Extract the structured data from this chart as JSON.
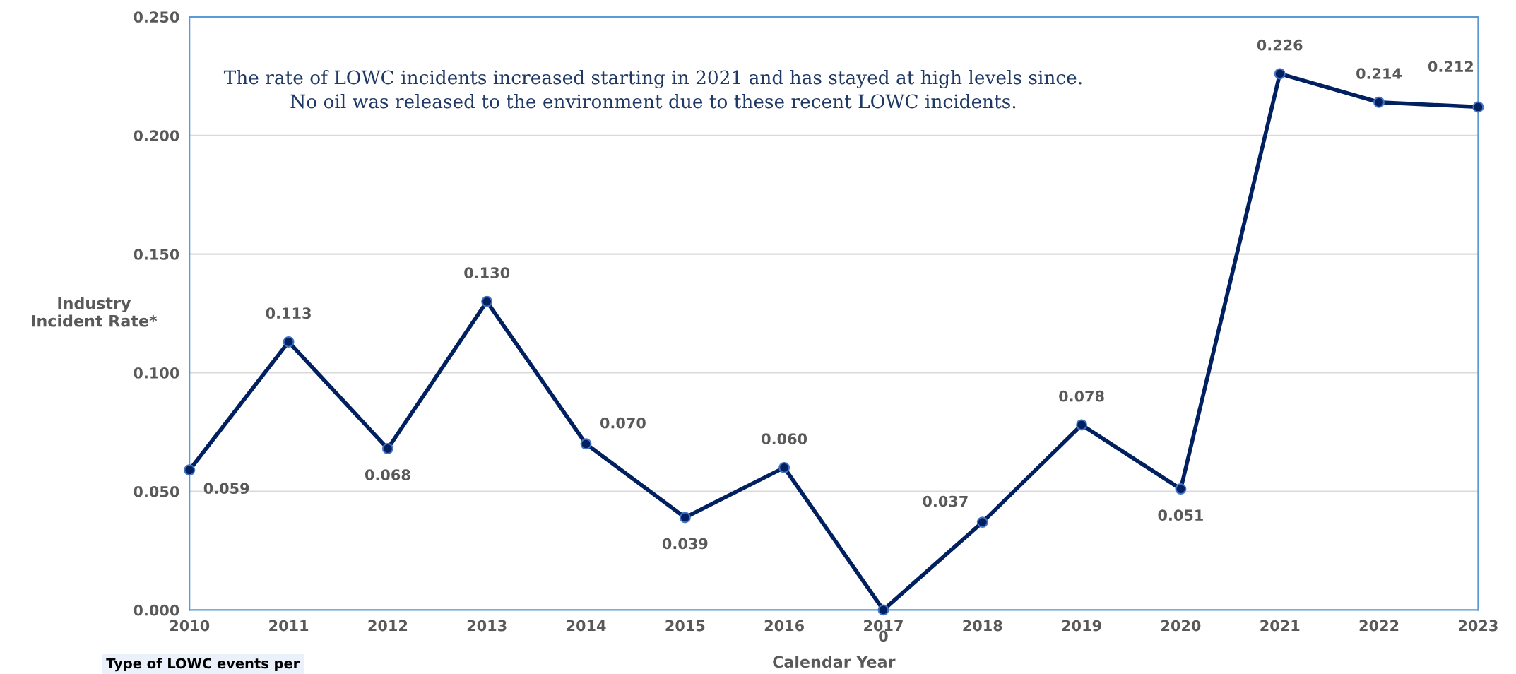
{
  "chart_data": {
    "type": "line",
    "xlabel": "Calendar Year",
    "ylabel": "Industry\nIncident Rate*",
    "categories": [
      "2010",
      "2011",
      "2012",
      "2013",
      "2014",
      "2015",
      "2016",
      "2017",
      "2018",
      "2019",
      "2020",
      "2021",
      "2022",
      "2023"
    ],
    "series": [
      {
        "color": "#002060",
        "values": [
          0.059,
          0.113,
          0.068,
          0.13,
          0.07,
          0.039,
          0.06,
          0,
          0.037,
          0.078,
          0.051,
          0.226,
          0.214,
          0.212
        ],
        "value_labels": [
          "0.059",
          "0.113",
          "0.068",
          "0.130",
          "0.070",
          "0.039",
          "0.060",
          "0",
          "0.037",
          "0.078",
          "0.051",
          "0.226",
          "0.214",
          "0.212"
        ]
      }
    ],
    "ylim": [
      0,
      0.25
    ],
    "yticks": [
      {
        "value": 0,
        "label": "0.000"
      },
      {
        "value": 0.05,
        "label": "0.050"
      },
      {
        "value": 0.1,
        "label": "0.100"
      },
      {
        "value": 0.15,
        "label": "0.150"
      },
      {
        "value": 0.2,
        "label": "0.200"
      },
      {
        "value": 0.25,
        "label": "0.250"
      }
    ],
    "grid": "y",
    "marker": "circle",
    "line_style": "solid",
    "legend": false,
    "annotations": [
      "The rate of LOWC incidents increased starting in 2021 and has stayed at high levels since.\nNo oil was released to the environment due to these recent LOWC incidents.",
      "Type of LOWC events per"
    ]
  }
}
